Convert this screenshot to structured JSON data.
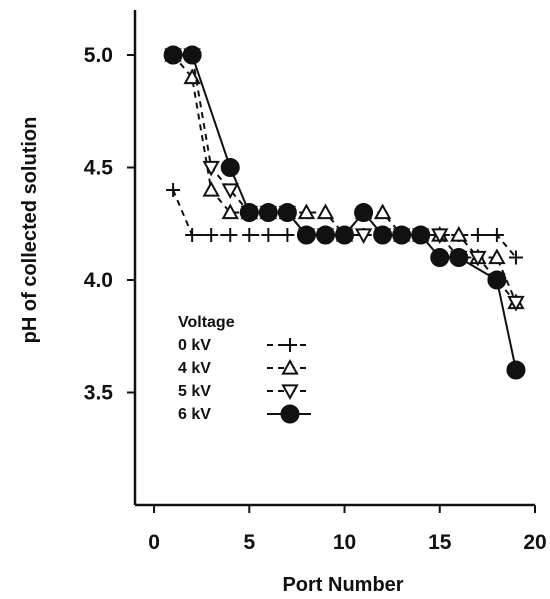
{
  "chart_data": {
    "type": "scatter",
    "xlabel": "Port Number",
    "ylabel": "pH of collected solution",
    "xlim": [
      -1,
      20
    ],
    "ylim": [
      3.0,
      5.2
    ],
    "xticks": [
      "0",
      "5",
      "10",
      "15",
      "20"
    ],
    "yticks": [
      "3.5",
      "4.0",
      "4.5",
      "5.0"
    ],
    "grid": false,
    "legend": {
      "title": "Voltage",
      "placement": "bottom-left",
      "entries": [
        "0 kV",
        "4 kV",
        "5 kV",
        "6 kV"
      ]
    },
    "series": [
      {
        "name": "0 kV",
        "marker": "plus",
        "line": "dashed",
        "x": [
          1,
          2,
          3,
          4,
          5,
          6,
          7,
          8,
          9,
          10,
          11,
          12,
          13,
          14,
          15,
          16,
          17,
          18,
          19
        ],
        "y": [
          4.4,
          4.2,
          4.2,
          4.2,
          4.2,
          4.2,
          4.2,
          4.2,
          4.2,
          4.2,
          4.2,
          4.2,
          4.2,
          4.2,
          4.2,
          4.2,
          4.2,
          4.2,
          4.1
        ]
      },
      {
        "name": "4 kV",
        "marker": "triangle-up",
        "line": "dashed",
        "x": [
          1,
          2,
          3,
          4,
          5,
          6,
          7,
          8,
          9,
          10,
          11,
          12,
          13,
          14,
          15,
          16,
          17,
          18,
          19
        ],
        "y": [
          5.0,
          4.9,
          4.4,
          4.3,
          4.3,
          4.3,
          4.3,
          4.3,
          4.3,
          4.2,
          4.3,
          4.3,
          4.2,
          4.2,
          4.2,
          4.2,
          4.1,
          4.1,
          3.9
        ]
      },
      {
        "name": "5 kV",
        "marker": "triangle-down",
        "line": "dashed",
        "x": [
          1,
          2,
          3,
          4,
          5,
          6,
          7,
          8,
          9,
          10,
          11,
          12,
          13,
          14,
          15,
          16,
          17,
          18,
          19
        ],
        "y": [
          5.0,
          5.0,
          4.5,
          4.4,
          4.3,
          4.3,
          4.3,
          4.2,
          4.2,
          4.2,
          4.2,
          4.2,
          4.2,
          4.2,
          4.2,
          4.1,
          4.1,
          4.0,
          3.9
        ]
      },
      {
        "name": "6 kV",
        "marker": "circle",
        "line": "solid",
        "x": [
          1,
          2,
          4,
          5,
          6,
          7,
          8,
          9,
          10,
          11,
          12,
          13,
          14,
          15,
          16,
          18,
          19
        ],
        "y": [
          5.0,
          5.0,
          4.5,
          4.3,
          4.3,
          4.3,
          4.2,
          4.2,
          4.2,
          4.3,
          4.2,
          4.2,
          4.2,
          4.1,
          4.1,
          4.0,
          3.6
        ]
      }
    ]
  }
}
